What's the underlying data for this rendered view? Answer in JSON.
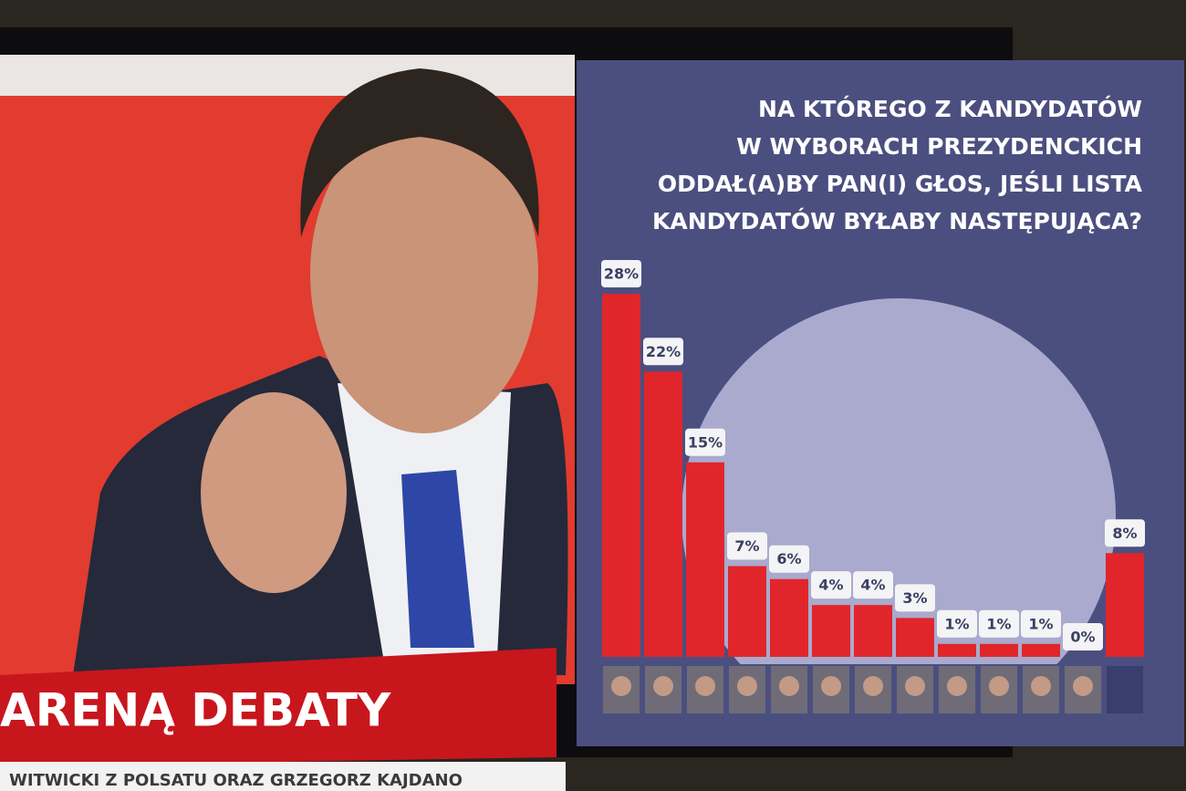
{
  "chart_data": {
    "type": "bar",
    "title": [
      "NA KTÓREGO Z KANDYDATÓW",
      "W WYBORACH PREZYDENCKICH",
      "ODDAŁ(A)BY PAN(I) GŁOS, JEŚLI LISTA",
      "KANDYDATÓW BYŁABY NASTĘPUJĄCA?"
    ],
    "categories": [
      null,
      null,
      null,
      null,
      null,
      null,
      null,
      null,
      null,
      null,
      null,
      null,
      null
    ],
    "values": [
      28,
      22,
      15,
      7,
      6,
      4,
      4,
      3,
      1,
      1,
      1,
      0,
      8
    ],
    "value_labels": [
      "28%",
      "22%",
      "15%",
      "7%",
      "6%",
      "4%",
      "4%",
      "3%",
      "1%",
      "1%",
      "1%",
      "0%",
      "8%"
    ],
    "color": "#e0262b"
  },
  "overlay": {
    "banner": "ARENĄ DEBATY",
    "ticker": "WITWICKI Z POLSATU ORAZ GRZEGORZ KAJDANO"
  }
}
